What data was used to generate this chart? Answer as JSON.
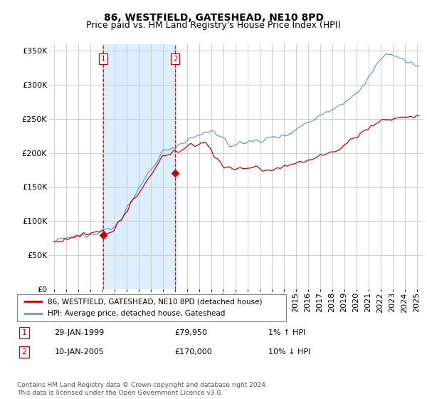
{
  "title": "86, WESTFIELD, GATESHEAD, NE10 8PD",
  "subtitle": "Price paid vs. HM Land Registry's House Price Index (HPI)",
  "ylim": [
    0,
    360000
  ],
  "yticks": [
    0,
    50000,
    100000,
    150000,
    200000,
    250000,
    300000,
    350000
  ],
  "sale1": {
    "date_num": 1999.08,
    "price": 79950,
    "label": "1",
    "date_str": "29-JAN-1999",
    "hpi_change": "1% ↑ HPI"
  },
  "sale2": {
    "date_num": 2005.04,
    "price": 170000,
    "label": "2",
    "date_str": "10-JAN-2005",
    "hpi_change": "10% ↓ HPI"
  },
  "legend_entry1": "86, WESTFIELD, GATESHEAD, NE10 8PD (detached house)",
  "legend_entry2": "HPI: Average price, detached house, Gateshead",
  "footnote": "Contains HM Land Registry data © Crown copyright and database right 2024.\nThis data is licensed under the Open Government Licence v3.0.",
  "line_color_red": "#cc0000",
  "line_color_blue": "#6699cc",
  "vline_color": "#cc0000",
  "background_color": "#ffffff",
  "plot_bg_color": "#ffffff",
  "shade_color": "#ddeeff",
  "grid_color": "#cccccc",
  "title_fontsize": 10,
  "subtitle_fontsize": 9,
  "tick_fontsize": 8
}
